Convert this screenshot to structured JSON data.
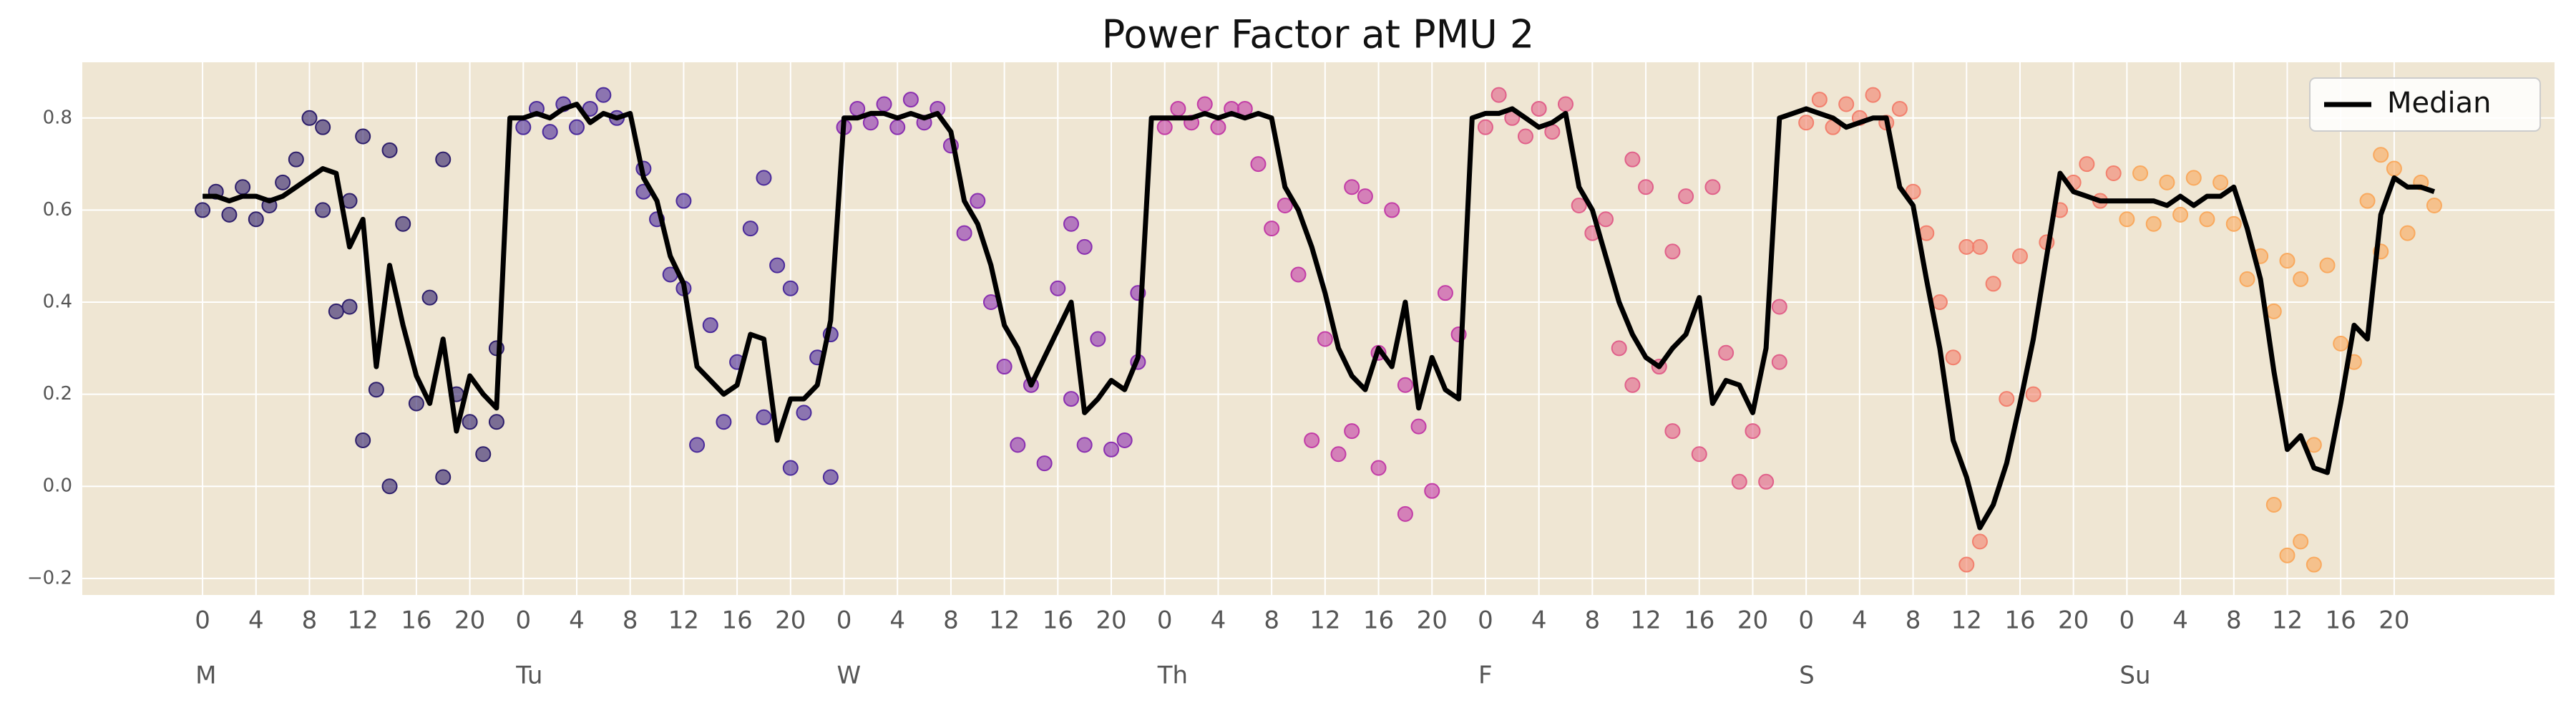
{
  "chart_data": {
    "type": "scatter",
    "title": "Power Factor at PMU 2",
    "xlim": [
      -9,
      176
    ],
    "ylim": [
      -0.236,
      0.921
    ],
    "grid": true,
    "legend": "upper right",
    "xticks": [
      {
        "value": 0,
        "label": "0"
      },
      {
        "value": 4,
        "label": "4"
      },
      {
        "value": 8,
        "label": "8"
      },
      {
        "value": 12,
        "label": "12"
      },
      {
        "value": 16,
        "label": "16"
      },
      {
        "value": 20,
        "label": "20"
      },
      {
        "value": 24,
        "label": "0"
      },
      {
        "value": 28,
        "label": "4"
      },
      {
        "value": 32,
        "label": "8"
      },
      {
        "value": 36,
        "label": "12"
      },
      {
        "value": 40,
        "label": "16"
      },
      {
        "value": 44,
        "label": "20"
      },
      {
        "value": 48,
        "label": "0"
      },
      {
        "value": 52,
        "label": "4"
      },
      {
        "value": 56,
        "label": "8"
      },
      {
        "value": 60,
        "label": "12"
      },
      {
        "value": 64,
        "label": "16"
      },
      {
        "value": 68,
        "label": "20"
      },
      {
        "value": 72,
        "label": "0"
      },
      {
        "value": 76,
        "label": "4"
      },
      {
        "value": 80,
        "label": "8"
      },
      {
        "value": 84,
        "label": "12"
      },
      {
        "value": 88,
        "label": "16"
      },
      {
        "value": 92,
        "label": "20"
      },
      {
        "value": 96,
        "label": "0"
      },
      {
        "value": 100,
        "label": "4"
      },
      {
        "value": 104,
        "label": "8"
      },
      {
        "value": 108,
        "label": "12"
      },
      {
        "value": 112,
        "label": "16"
      },
      {
        "value": 116,
        "label": "20"
      },
      {
        "value": 120,
        "label": "0"
      },
      {
        "value": 124,
        "label": "4"
      },
      {
        "value": 128,
        "label": "8"
      },
      {
        "value": 132,
        "label": "12"
      },
      {
        "value": 136,
        "label": "16"
      },
      {
        "value": 140,
        "label": "20"
      },
      {
        "value": 144,
        "label": "0"
      },
      {
        "value": 148,
        "label": "4"
      },
      {
        "value": 152,
        "label": "8"
      },
      {
        "value": 156,
        "label": "12"
      },
      {
        "value": 160,
        "label": "16"
      },
      {
        "value": 164,
        "label": "20"
      }
    ],
    "day_labels": [
      {
        "value": 0,
        "label": "M"
      },
      {
        "value": 24,
        "label": "Tu"
      },
      {
        "value": 48,
        "label": "W"
      },
      {
        "value": 72,
        "label": "Th"
      },
      {
        "value": 96,
        "label": "F"
      },
      {
        "value": 120,
        "label": "S"
      },
      {
        "value": 144,
        "label": "Su"
      }
    ],
    "yticks": [
      {
        "value": -0.2,
        "label": "−0.2"
      },
      {
        "value": 0,
        "label": "0.0"
      },
      0.2,
      0.4,
      0.6,
      0.8
    ],
    "series": [
      {
        "name": "Median",
        "type": "line",
        "color": "#000000",
        "x": [
          0,
          1,
          2,
          3,
          4,
          5,
          6,
          7,
          8,
          9,
          10,
          11,
          12,
          13,
          14,
          15,
          16,
          17,
          18,
          19,
          20,
          21,
          22,
          23,
          24,
          25,
          26,
          27,
          28,
          29,
          30,
          31,
          32,
          33,
          34,
          35,
          36,
          37,
          38,
          39,
          40,
          41,
          42,
          43,
          44,
          45,
          46,
          47,
          48,
          49,
          50,
          51,
          52,
          53,
          54,
          55,
          56,
          57,
          58,
          59,
          60,
          61,
          62,
          63,
          64,
          65,
          66,
          67,
          68,
          69,
          70,
          71,
          72,
          73,
          74,
          75,
          76,
          77,
          78,
          79,
          80,
          81,
          82,
          83,
          84,
          85,
          86,
          87,
          88,
          89,
          90,
          91,
          92,
          93,
          94,
          95,
          96,
          97,
          98,
          99,
          100,
          101,
          102,
          103,
          104,
          105,
          106,
          107,
          108,
          109,
          110,
          111,
          112,
          113,
          114,
          115,
          116,
          117,
          118,
          119,
          120,
          121,
          122,
          123,
          124,
          125,
          126,
          127,
          128,
          129,
          130,
          131,
          132,
          133,
          134,
          135,
          136,
          137,
          138,
          139,
          140,
          141,
          142,
          143,
          144,
          145,
          146,
          147,
          148,
          149,
          150,
          151,
          152,
          153,
          154,
          155,
          156,
          157,
          158,
          159,
          160,
          161,
          162,
          163,
          164,
          165,
          166,
          167
        ],
        "values": [
          0.63,
          0.63,
          0.62,
          0.63,
          0.63,
          0.62,
          0.63,
          0.65,
          0.67,
          0.69,
          0.68,
          0.52,
          0.58,
          0.26,
          0.48,
          0.35,
          0.24,
          0.18,
          0.32,
          0.12,
          0.24,
          0.2,
          0.17,
          0.8,
          0.8,
          0.81,
          0.8,
          0.82,
          0.83,
          0.79,
          0.81,
          0.8,
          0.81,
          0.67,
          0.62,
          0.5,
          0.44,
          0.26,
          0.23,
          0.2,
          0.22,
          0.33,
          0.32,
          0.1,
          0.19,
          0.19,
          0.22,
          0.36,
          0.8,
          0.8,
          0.81,
          0.81,
          0.8,
          0.81,
          0.8,
          0.81,
          0.77,
          0.62,
          0.57,
          0.48,
          0.35,
          0.3,
          0.22,
          0.28,
          0.34,
          0.4,
          0.16,
          0.19,
          0.23,
          0.21,
          0.28,
          0.8,
          0.8,
          0.8,
          0.8,
          0.81,
          0.8,
          0.81,
          0.8,
          0.81,
          0.8,
          0.65,
          0.6,
          0.52,
          0.42,
          0.3,
          0.24,
          0.21,
          0.3,
          0.26,
          0.4,
          0.17,
          0.28,
          0.21,
          0.19,
          0.8,
          0.81,
          0.81,
          0.82,
          0.8,
          0.78,
          0.79,
          0.81,
          0.65,
          0.6,
          0.5,
          0.4,
          0.33,
          0.28,
          0.26,
          0.3,
          0.33,
          0.41,
          0.18,
          0.23,
          0.22,
          0.16,
          0.3,
          0.8,
          0.81,
          0.82,
          0.81,
          0.8,
          0.78,
          0.79,
          0.8,
          0.8,
          0.65,
          0.61,
          0.45,
          0.3,
          0.1,
          0.02,
          -0.09,
          -0.04,
          0.05,
          0.18,
          0.32,
          0.5,
          0.68,
          0.64,
          0.63,
          0.62,
          0.62,
          0.62,
          0.62,
          0.62,
          0.61,
          0.63,
          0.61,
          0.63,
          0.63,
          0.65,
          0.56,
          0.45,
          0.25,
          0.08,
          0.11,
          0.04,
          0.03,
          0.18,
          0.35,
          0.32,
          0.59,
          0.67,
          0.65,
          0.65,
          0.64
        ]
      }
    ],
    "scatter": [
      {
        "color": "#2d1e6b",
        "x": [
          0,
          1,
          2,
          3,
          4,
          5,
          6,
          7,
          8,
          9,
          9,
          10,
          11,
          11,
          12,
          12,
          13,
          14,
          14,
          15,
          16,
          17,
          18,
          18,
          19,
          20,
          21,
          22,
          22
        ],
        "values": [
          0.6,
          0.64,
          0.59,
          0.65,
          0.58,
          0.61,
          0.66,
          0.71,
          0.8,
          0.78,
          0.6,
          0.38,
          0.62,
          0.39,
          0.76,
          0.1,
          0.21,
          0.73,
          0.0,
          0.57,
          0.18,
          0.41,
          0.71,
          0.02,
          0.2,
          0.14,
          0.07,
          0.3,
          0.14
        ]
      },
      {
        "color": "#4a2a9a",
        "x": [
          24,
          25,
          26,
          27,
          28,
          29,
          30,
          31,
          33,
          33,
          34,
          35,
          36,
          36,
          37,
          38,
          39,
          40,
          41,
          42,
          42,
          43,
          44,
          44,
          45,
          46,
          47,
          47
        ],
        "values": [
          0.78,
          0.82,
          0.77,
          0.83,
          0.78,
          0.82,
          0.85,
          0.8,
          0.69,
          0.64,
          0.58,
          0.46,
          0.62,
          0.43,
          0.09,
          0.35,
          0.14,
          0.27,
          0.56,
          0.67,
          0.15,
          0.48,
          0.04,
          0.43,
          0.16,
          0.28,
          0.02,
          0.33
        ]
      },
      {
        "color": "#8a2fb0",
        "x": [
          48,
          49,
          50,
          51,
          52,
          53,
          54,
          55,
          56,
          57,
          58,
          59,
          60,
          61,
          62,
          63,
          64,
          65,
          65,
          66,
          66,
          67,
          68,
          69,
          70,
          70
        ],
        "values": [
          0.78,
          0.82,
          0.79,
          0.83,
          0.78,
          0.84,
          0.79,
          0.82,
          0.74,
          0.55,
          0.62,
          0.4,
          0.26,
          0.09,
          0.22,
          0.05,
          0.43,
          0.57,
          0.19,
          0.52,
          0.09,
          0.32,
          0.08,
          0.1,
          0.42,
          0.27
        ]
      },
      {
        "color": "#c23ca6",
        "x": [
          72,
          73,
          74,
          75,
          76,
          77,
          78,
          79,
          80,
          81,
          82,
          83,
          84,
          85,
          86,
          86,
          87,
          88,
          88,
          89,
          90,
          90,
          91,
          92,
          93,
          94
        ],
        "values": [
          0.78,
          0.82,
          0.79,
          0.83,
          0.78,
          0.82,
          0.82,
          0.7,
          0.56,
          0.61,
          0.46,
          0.1,
          0.32,
          0.07,
          0.65,
          0.12,
          0.63,
          0.04,
          0.29,
          0.6,
          -0.06,
          0.22,
          0.13,
          -0.01,
          0.42,
          0.33
        ]
      },
      {
        "color": "#e0608a",
        "x": [
          96,
          97,
          98,
          99,
          100,
          101,
          102,
          103,
          104,
          105,
          106,
          107,
          107,
          108,
          109,
          110,
          110,
          111,
          112,
          113,
          114,
          115,
          116,
          117,
          118,
          118
        ],
        "values": [
          0.78,
          0.85,
          0.8,
          0.76,
          0.82,
          0.77,
          0.83,
          0.61,
          0.55,
          0.58,
          0.3,
          0.71,
          0.22,
          0.65,
          0.26,
          0.12,
          0.51,
          0.63,
          0.07,
          0.65,
          0.29,
          0.01,
          0.12,
          0.01,
          0.39,
          0.27
        ]
      },
      {
        "color": "#f2806e",
        "x": [
          120,
          121,
          122,
          123,
          124,
          125,
          126,
          127,
          128,
          129,
          130,
          131,
          132,
          132,
          133,
          133,
          134,
          135,
          136,
          137,
          138,
          139,
          140,
          141,
          142,
          143
        ],
        "values": [
          0.79,
          0.84,
          0.78,
          0.83,
          0.8,
          0.85,
          0.79,
          0.82,
          0.64,
          0.55,
          0.4,
          0.28,
          0.52,
          -0.17,
          0.52,
          -0.12,
          0.44,
          0.19,
          0.5,
          0.2,
          0.53,
          0.6,
          0.66,
          0.7,
          0.62,
          0.68
        ]
      },
      {
        "color": "#f9a95e",
        "x": [
          144,
          145,
          146,
          147,
          148,
          149,
          150,
          151,
          152,
          153,
          154,
          155,
          155,
          156,
          156,
          157,
          157,
          158,
          158,
          159,
          160,
          161,
          162,
          163,
          163,
          164,
          165,
          166,
          167
        ],
        "values": [
          0.58,
          0.68,
          0.57,
          0.66,
          0.59,
          0.67,
          0.58,
          0.66,
          0.57,
          0.45,
          0.5,
          0.38,
          -0.04,
          0.49,
          -0.15,
          0.45,
          -0.12,
          0.09,
          -0.17,
          0.48,
          0.31,
          0.27,
          0.62,
          0.72,
          0.51,
          0.69,
          0.55,
          0.66,
          0.61
        ]
      }
    ]
  }
}
